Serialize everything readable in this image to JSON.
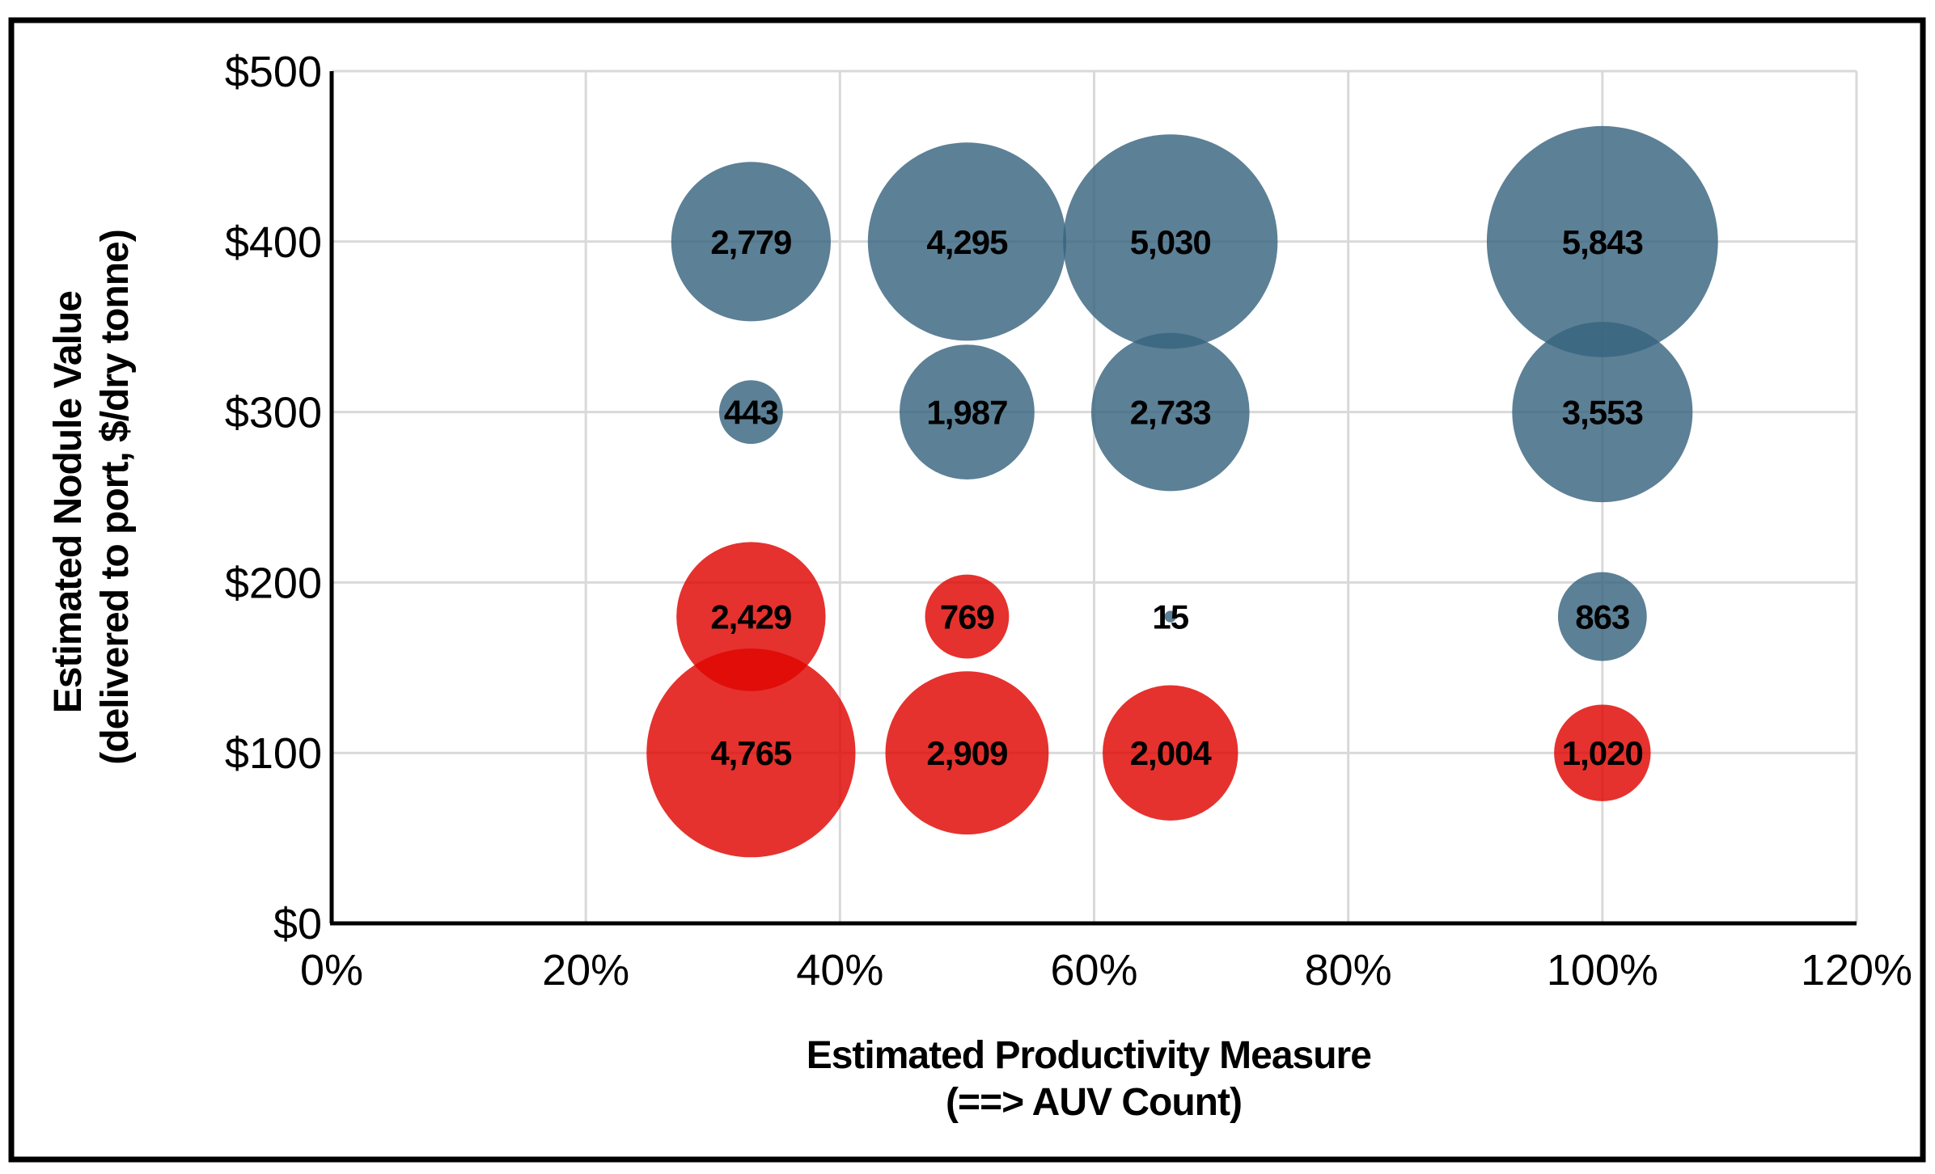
{
  "chart_data": {
    "type": "bubble",
    "grid": true,
    "fill_opacity": 0.82,
    "gridline_color": "#d9d9d9",
    "axis_color": "#000000",
    "x_axis": {
      "label_line1": "Estimated Productivity Measure",
      "label_line2": "(==> AUV Count)",
      "lim": [
        0,
        120
      ],
      "ticks": [
        {
          "label": "0%",
          "value": 0
        },
        {
          "label": "20%",
          "value": 20
        },
        {
          "label": "40%",
          "value": 40
        },
        {
          "label": "60%",
          "value": 60
        },
        {
          "label": "80%",
          "value": 80
        },
        {
          "label": "100%",
          "value": 100
        },
        {
          "label": "120%",
          "value": 120
        }
      ]
    },
    "y_axis": {
      "label_line1": "Estimated Nodule Value",
      "label_line2": "(delivered to port, $/dry tonne)",
      "lim": [
        0,
        500
      ],
      "ticks": [
        {
          "label": "$0",
          "value": 0
        },
        {
          "label": "$100",
          "value": 100
        },
        {
          "label": "$200",
          "value": 200
        },
        {
          "label": "$300",
          "value": 300
        },
        {
          "label": "$400",
          "value": 400
        },
        {
          "label": "$500",
          "value": 500
        }
      ]
    },
    "series": [
      {
        "name": "blue-series",
        "color": "#38647f",
        "display_color": "#5c8096",
        "points": [
          {
            "x": 33,
            "y": 400,
            "size": 2779,
            "label": "2,779"
          },
          {
            "x": 50,
            "y": 400,
            "size": 4295,
            "label": "4,295"
          },
          {
            "x": 66,
            "y": 400,
            "size": 5030,
            "label": "5,030"
          },
          {
            "x": 100,
            "y": 400,
            "size": 5843,
            "label": "5,843"
          },
          {
            "x": 33,
            "y": 300,
            "size": 443,
            "label": "443"
          },
          {
            "x": 50,
            "y": 300,
            "size": 1987,
            "label": "1,987"
          },
          {
            "x": 66,
            "y": 300,
            "size": 2733,
            "label": "2,733"
          },
          {
            "x": 100,
            "y": 300,
            "size": 3553,
            "label": "3,553"
          },
          {
            "x": 66,
            "y": 180,
            "size": 15,
            "label": "15"
          },
          {
            "x": 100,
            "y": 180,
            "size": 863,
            "label": "863"
          }
        ]
      },
      {
        "name": "red-series",
        "color": "#df0500",
        "display_color": "#e5322b",
        "points": [
          {
            "x": 33,
            "y": 180,
            "size": 2429,
            "label": "2,429"
          },
          {
            "x": 50,
            "y": 180,
            "size": 769,
            "label": "769"
          },
          {
            "x": 33,
            "y": 100,
            "size": 4765,
            "label": "4,765"
          },
          {
            "x": 50,
            "y": 100,
            "size": 2909,
            "label": "2,909"
          },
          {
            "x": 66,
            "y": 100,
            "size": 2004,
            "label": "2,004"
          },
          {
            "x": 100,
            "y": 100,
            "size": 1020,
            "label": "1,020"
          }
        ]
      }
    ]
  }
}
